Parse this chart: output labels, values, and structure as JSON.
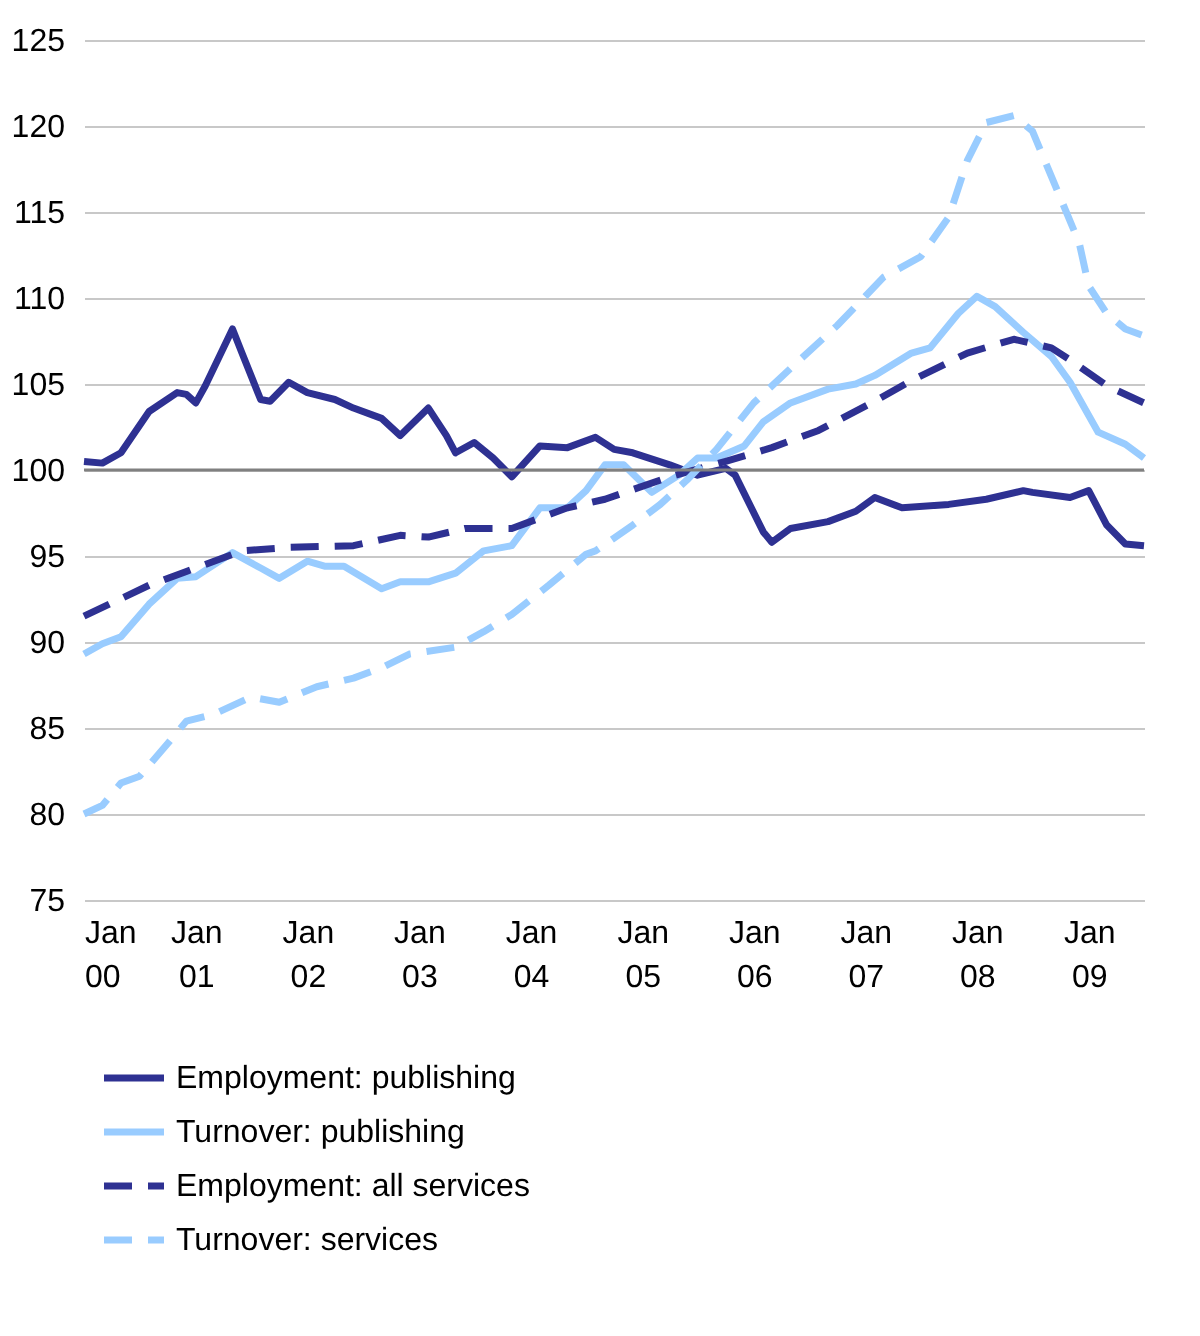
{
  "chart_data": {
    "type": "line",
    "xlim": [
      "2000-01",
      "2009-07"
    ],
    "ylim": [
      75,
      125
    ],
    "xticks": [
      {
        "value": "2000-01",
        "label": "Jan 00"
      },
      {
        "value": "2001-01",
        "label": "Jan 01"
      },
      {
        "value": "2002-01",
        "label": "Jan 02"
      },
      {
        "value": "2003-01",
        "label": "Jan 03"
      },
      {
        "value": "2004-01",
        "label": "Jan 04"
      },
      {
        "value": "2005-01",
        "label": "Jan 05"
      },
      {
        "value": "2006-01",
        "label": "Jan 06"
      },
      {
        "value": "2007-01",
        "label": "Jan 07"
      },
      {
        "value": "2008-01",
        "label": "Jan 08"
      },
      {
        "value": "2009-01",
        "label": "Jan 09"
      }
    ],
    "yticks": [
      75,
      80,
      85,
      90,
      95,
      100,
      105,
      110,
      115,
      120,
      125
    ],
    "grid": "y",
    "legend": "bottom",
    "marker": "none",
    "ref_lines": [
      {
        "axis": "y",
        "value": 100,
        "color": "#808080"
      }
    ],
    "series": [
      {
        "name": "Employment: publishing",
        "color": "#2e3192",
        "line_style": "solid",
        "x": [
          "2000-01",
          "2000-03",
          "2000-05",
          "2000-08",
          "2000-11",
          "2000-12",
          "2001-01",
          "2001-02",
          "2001-05",
          "2001-06",
          "2001-08",
          "2001-09",
          "2001-11",
          "2002-01",
          "2002-04",
          "2002-06",
          "2002-09",
          "2002-11",
          "2003-02",
          "2003-04",
          "2003-05",
          "2003-07",
          "2003-09",
          "2003-11",
          "2004-02",
          "2004-05",
          "2004-08",
          "2004-10",
          "2004-12",
          "2005-04",
          "2005-07",
          "2005-10",
          "2005-11",
          "2006-02",
          "2006-03",
          "2006-05",
          "2006-09",
          "2006-12",
          "2007-02",
          "2007-05",
          "2007-10",
          "2008-02",
          "2008-06",
          "2008-07",
          "2008-11",
          "2009-01",
          "2009-03",
          "2009-05",
          "2009-07"
        ],
        "values": [
          100.5,
          100.4,
          101.0,
          103.4,
          104.5,
          104.4,
          103.9,
          104.9,
          108.2,
          106.8,
          104.1,
          104.0,
          105.1,
          104.5,
          104.1,
          103.6,
          103.0,
          102.0,
          103.6,
          102.0,
          101.0,
          101.6,
          100.7,
          99.6,
          101.4,
          101.3,
          101.9,
          101.2,
          101.0,
          100.3,
          99.7,
          100.1,
          99.7,
          96.4,
          95.8,
          96.6,
          97.0,
          97.6,
          98.4,
          97.8,
          98.0,
          98.3,
          98.8,
          98.7,
          98.4,
          98.8,
          96.8,
          95.7,
          95.6
        ]
      },
      {
        "name": "Turnover: publishing",
        "color": "#99ccff",
        "line_style": "solid",
        "x": [
          "2000-01",
          "2000-03",
          "2000-05",
          "2000-08",
          "2000-11",
          "2001-01",
          "2001-05",
          "2001-08",
          "2001-10",
          "2002-01",
          "2002-03",
          "2002-05",
          "2002-09",
          "2002-11",
          "2003-02",
          "2003-05",
          "2003-08",
          "2003-11",
          "2004-02",
          "2004-05",
          "2004-07",
          "2004-09",
          "2004-11",
          "2005-02",
          "2005-05",
          "2005-07",
          "2005-09",
          "2005-12",
          "2006-02",
          "2006-05",
          "2006-09",
          "2006-12",
          "2007-02",
          "2007-06",
          "2007-08",
          "2007-11",
          "2008-01",
          "2008-03",
          "2008-06",
          "2008-09",
          "2008-11",
          "2009-02",
          "2009-05",
          "2009-07"
        ],
        "values": [
          89.3,
          89.9,
          90.3,
          92.2,
          93.7,
          93.8,
          95.2,
          94.3,
          93.7,
          94.7,
          94.4,
          94.4,
          93.1,
          93.5,
          93.5,
          94.0,
          95.3,
          95.6,
          97.8,
          97.8,
          98.8,
          100.3,
          100.3,
          98.7,
          99.7,
          100.7,
          100.7,
          101.4,
          102.8,
          103.9,
          104.7,
          105.0,
          105.5,
          106.8,
          107.1,
          109.1,
          110.1,
          109.5,
          108.0,
          106.6,
          105.1,
          102.2,
          101.5,
          100.7
        ]
      },
      {
        "name": "Employment: all services",
        "color": "#2e3192",
        "line_style": "dashed",
        "x": [
          "2000-01",
          "2000-08",
          "2000-12",
          "2001-06",
          "2001-11",
          "2002-06",
          "2002-11",
          "2003-02",
          "2003-06",
          "2003-11",
          "2004-05",
          "2004-09",
          "2005-04",
          "2005-10",
          "2006-03",
          "2006-08",
          "2007-02",
          "2007-06",
          "2007-12",
          "2008-05",
          "2008-09",
          "2008-11",
          "2009-03",
          "2009-07"
        ],
        "values": [
          91.5,
          93.3,
          94.1,
          95.3,
          95.5,
          95.6,
          96.2,
          96.1,
          96.6,
          96.6,
          97.8,
          98.3,
          99.6,
          100.5,
          101.3,
          102.3,
          104.0,
          105.2,
          106.8,
          107.6,
          107.1,
          106.4,
          104.9,
          103.9
        ]
      },
      {
        "name": "Turnover: services",
        "color": "#99ccff",
        "line_style": "dashed",
        "x": [
          "2000-01",
          "2000-03",
          "2000-05",
          "2000-07",
          "2000-10",
          "2000-12",
          "2001-03",
          "2001-07",
          "2001-10",
          "2002-02",
          "2002-06",
          "2002-09",
          "2002-12",
          "2003-05",
          "2003-08",
          "2003-11",
          "2004-03",
          "2004-07",
          "2004-08",
          "2004-12",
          "2005-03",
          "2005-06",
          "2005-09",
          "2006-01",
          "2006-05",
          "2006-10",
          "2007-01",
          "2007-03",
          "2007-07",
          "2007-10",
          "2007-12",
          "2008-02",
          "2008-05",
          "2008-07",
          "2008-12",
          "2009-01",
          "2009-03",
          "2009-05",
          "2009-07"
        ],
        "values": [
          80.0,
          80.5,
          81.8,
          82.2,
          84.1,
          85.4,
          85.8,
          86.8,
          86.5,
          87.4,
          87.9,
          88.5,
          89.3,
          89.7,
          90.6,
          91.6,
          93.3,
          95.1,
          95.3,
          96.8,
          98.0,
          99.5,
          101.2,
          103.9,
          105.9,
          108.4,
          110.1,
          111.2,
          112.4,
          114.7,
          118.0,
          120.2,
          120.6,
          119.7,
          113.2,
          110.7,
          109.1,
          108.2,
          107.8
        ]
      }
    ]
  }
}
